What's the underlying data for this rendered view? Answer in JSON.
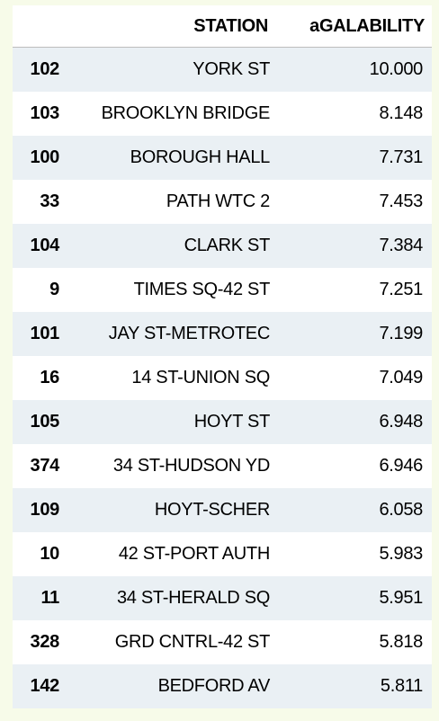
{
  "table": {
    "columns": [
      "",
      "STATION",
      "aGALABILITY"
    ],
    "rows": [
      {
        "index": "102",
        "station": "YORK ST",
        "availability": "10.000"
      },
      {
        "index": "103",
        "station": "BROOKLYN BRIDGE",
        "availability": "8.148"
      },
      {
        "index": "100",
        "station": "BOROUGH HALL",
        "availability": "7.731"
      },
      {
        "index": "33",
        "station": "PATH WTC 2",
        "availability": "7.453"
      },
      {
        "index": "104",
        "station": "CLARK ST",
        "availability": "7.384"
      },
      {
        "index": "9",
        "station": "TIMES SQ-42 ST",
        "availability": "7.251"
      },
      {
        "index": "101",
        "station": "JAY ST-METROTEC",
        "availability": "7.199"
      },
      {
        "index": "16",
        "station": "14 ST-UNION SQ",
        "availability": "7.049"
      },
      {
        "index": "105",
        "station": "HOYT ST",
        "availability": "6.948"
      },
      {
        "index": "374",
        "station": "34 ST-HUDSON YD",
        "availability": "6.946"
      },
      {
        "index": "109",
        "station": "HOYT-SCHER",
        "availability": "6.058"
      },
      {
        "index": "10",
        "station": "42 ST-PORT AUTH",
        "availability": "5.983"
      },
      {
        "index": "11",
        "station": "34 ST-HERALD SQ",
        "availability": "5.951"
      },
      {
        "index": "328",
        "station": "GRD CNTRL-42 ST",
        "availability": "5.818"
      },
      {
        "index": "142",
        "station": "BEDFORD AV",
        "availability": "5.811"
      }
    ]
  }
}
